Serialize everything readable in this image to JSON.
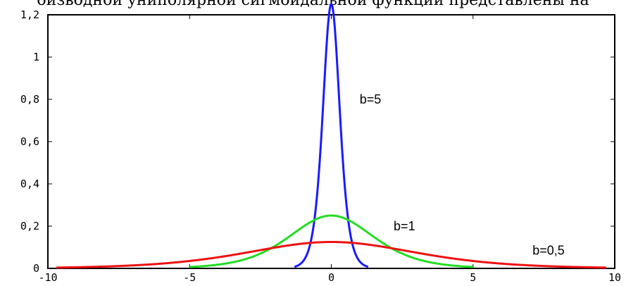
{
  "caption_fragment": "оизводной униполярной сигмоидальной функции представлены на",
  "chart_data": {
    "type": "line",
    "title": "",
    "xlabel": "",
    "ylabel": "",
    "xlim": [
      -10,
      10
    ],
    "ylim": [
      0,
      1.2
    ],
    "x_ticks": [
      -10,
      -5,
      0,
      5,
      10
    ],
    "x_tick_labels": [
      "-10",
      "-5",
      "0",
      "5",
      "10"
    ],
    "y_ticks": [
      0,
      0.2,
      0.4,
      0.6,
      0.8,
      1,
      1.2
    ],
    "y_tick_labels": [
      "0",
      "0,2",
      "0,4",
      "0,6",
      "0,8",
      "1",
      "1,2"
    ],
    "grid": false,
    "series": [
      {
        "name": "b=5",
        "b": 5,
        "color": "#1a1aff",
        "x_range": [
          -1.3,
          1.3
        ],
        "label_at": [
          1,
          0.8
        ]
      },
      {
        "name": "b=1",
        "b": 1,
        "color": "#22dd22",
        "x_range": [
          -5,
          5
        ],
        "label_at": [
          2.2,
          0.2
        ]
      },
      {
        "name": "b=0,5",
        "b": 0.5,
        "color": "#ee1111",
        "x_range": [
          -9.7,
          9.7
        ],
        "label_at": [
          7.1,
          0.085
        ]
      }
    ]
  }
}
